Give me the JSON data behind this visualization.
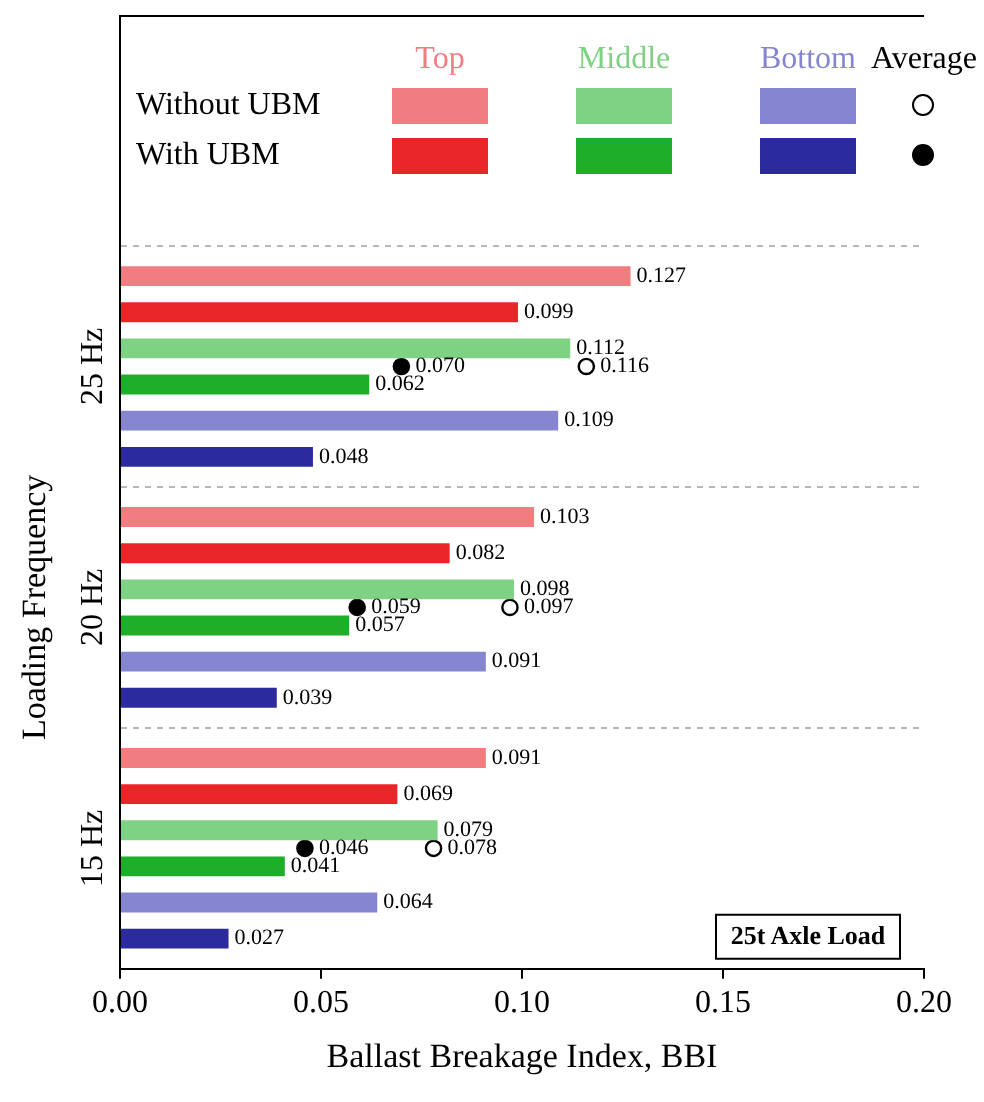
{
  "chart_data": {
    "type": "bar",
    "orientation": "horizontal",
    "xlabel": "Ballast Breakage Index, BBI",
    "ylabel": "Loading Frequency",
    "legend_title": "Average",
    "categories": [
      "25 Hz",
      "20 Hz",
      "15 Hz"
    ],
    "series": [
      {
        "name": "Top",
        "color": "#f07e80",
        "values": [
          0.127,
          0.103,
          0.091
        ]
      },
      {
        "color": "#e8262a",
        "values": [
          0.099,
          0.082,
          0.069
        ]
      },
      {
        "name": "Middle",
        "color": "#7fd183",
        "values": [
          0.112,
          0.098,
          0.079
        ]
      },
      {
        "color": "#1fae2a",
        "values": [
          0.062,
          0.057,
          0.041
        ]
      },
      {
        "name": "Bottom",
        "color": "#8585d0",
        "values": [
          0.109,
          0.091,
          0.064
        ]
      },
      {
        "color": "#2b2b9e",
        "values": [
          0.048,
          0.039,
          0.027
        ]
      },
      {
        "type": "scatter",
        "color": "#ffffff",
        "marker": "circle",
        "values": [
          0.116,
          0.097,
          0.078
        ],
        "value_labels": [
          "0.116",
          "0.097",
          "0.078"
        ]
      },
      {
        "type": "scatter",
        "color": "#000000",
        "marker": "circle",
        "values": [
          0.07,
          0.059,
          0.046
        ],
        "value_labels": [
          "0.070",
          "0.059",
          "0.046"
        ]
      }
    ],
    "xlim": [
      0,
      0.2
    ],
    "xticks": [
      {
        "value": 0,
        "label": "0.00"
      },
      {
        "value": 0.05,
        "label": "0.05"
      },
      {
        "value": 0.1,
        "label": "0.10"
      },
      {
        "value": 0.15,
        "label": "0.15"
      },
      {
        "value": 0.2,
        "label": "0.20"
      }
    ],
    "grid": "y",
    "legend": "top",
    "data_labels": true,
    "annotations": [
      "Without UBM",
      "With UBM",
      "25t Axle Load"
    ]
  }
}
